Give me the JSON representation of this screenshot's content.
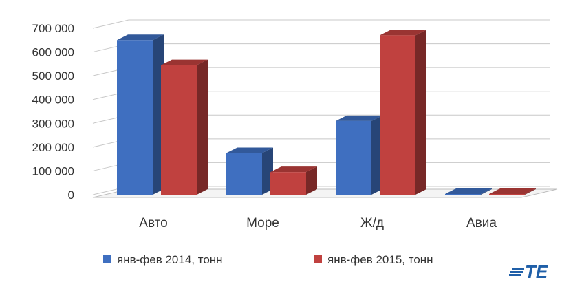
{
  "chart_data": {
    "type": "bar",
    "categories": [
      "Авто",
      "Море",
      "Ж/д",
      "Авиа"
    ],
    "series": [
      {
        "name": "янв-фев 2014, тонн",
        "color": "#3f6fc0",
        "values": [
          650000,
          175000,
          310000,
          1500
        ]
      },
      {
        "name": "янв-фев 2015, тонн",
        "color": "#c0413f",
        "values": [
          545000,
          95000,
          670000,
          1500
        ]
      }
    ],
    "y_ticks": [
      "0",
      "100 000",
      "200 000",
      "300 000",
      "400 000",
      "500 000",
      "600 000",
      "700 000"
    ],
    "ylim": [
      0,
      700000
    ],
    "grid": true,
    "legend_position": "bottom",
    "style": "3d-clustered-column"
  },
  "logo": {
    "text": "TE",
    "icon": "stripes-logo-icon",
    "color": "#1f5fa8"
  }
}
